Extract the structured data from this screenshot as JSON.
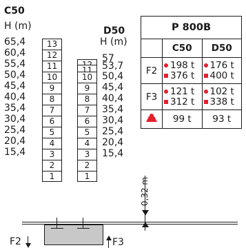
{
  "left_col": {
    "model": "C50",
    "unit": "H (m)",
    "heights": [
      "65,4",
      "60,4",
      "55,4",
      "50,4",
      "45,4",
      "40,4",
      "35,4",
      "30,4",
      "25,4",
      "20,4",
      "15,4"
    ],
    "levels": [
      "13",
      "12",
      "11",
      "10",
      "9",
      "8",
      "7",
      "6",
      "5",
      "4",
      "3",
      "2",
      "1"
    ]
  },
  "right_col": {
    "model": "D50",
    "unit": "H (m)",
    "heights": [
      "57",
      "53,7",
      "50,4",
      "45,4",
      "40,4",
      "35,4",
      "30,4",
      "25,4",
      "20,4",
      "15,4"
    ],
    "levels": [
      "12",
      "11",
      "10",
      "9",
      "8",
      "7",
      "6",
      "5",
      "4",
      "3",
      "2",
      "1"
    ]
  },
  "dimension": "0,32 m",
  "force_left": "F2",
  "force_right": "F3",
  "spec_table": {
    "title": "P 800B",
    "col_headers": [
      "C50",
      "D50"
    ],
    "rows": [
      {
        "label": "F2",
        "c50": [
          "198 t",
          "376 t"
        ],
        "d50": [
          "176 t",
          "400 t"
        ]
      },
      {
        "label": "F3",
        "c50": [
          "121 t",
          "312 t"
        ],
        "d50": [
          "102 t",
          "338 t"
        ]
      },
      {
        "label": "",
        "c50": [
          "99 t"
        ],
        "d50": [
          "93 t"
        ]
      }
    ]
  },
  "colors": {
    "accent": "#e5202e",
    "line": "#1a1a1a",
    "block": "#c8c8c8"
  }
}
